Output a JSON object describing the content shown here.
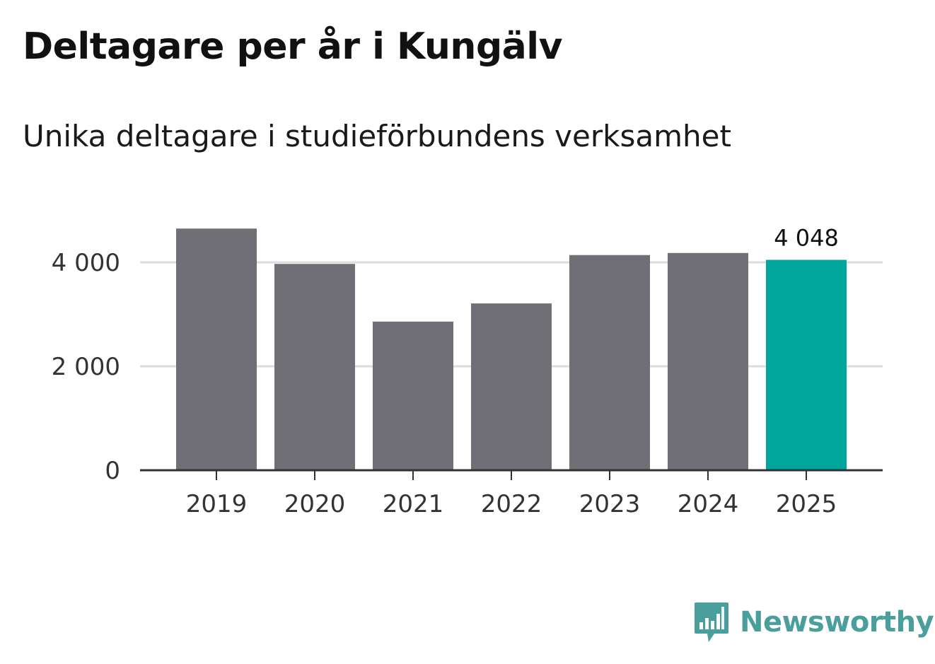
{
  "title": "Deltagare per år i Kungälv",
  "subtitle": "Unika deltagare i studieförbundens verksamhet",
  "chart_data": {
    "type": "bar",
    "categories": [
      "2019",
      "2020",
      "2021",
      "2022",
      "2023",
      "2024",
      "2025"
    ],
    "values": [
      4650,
      3970,
      2860,
      3210,
      4140,
      4180,
      4048
    ],
    "ylim": [
      0,
      4700
    ],
    "yticks": [
      0,
      2000,
      4000
    ],
    "ytick_labels": [
      "0",
      "2 000",
      "4 000"
    ],
    "grid": true,
    "highlight_index": 6,
    "highlight_label": "4 048",
    "colors": {
      "bar": "#706f75",
      "highlight": "#00a59c",
      "grid": "#dddddd",
      "axis": "#333333"
    }
  },
  "brand": {
    "name": "Newsworthy",
    "icon": "newsworthy-logo-icon",
    "color": "#4a9e9b"
  }
}
